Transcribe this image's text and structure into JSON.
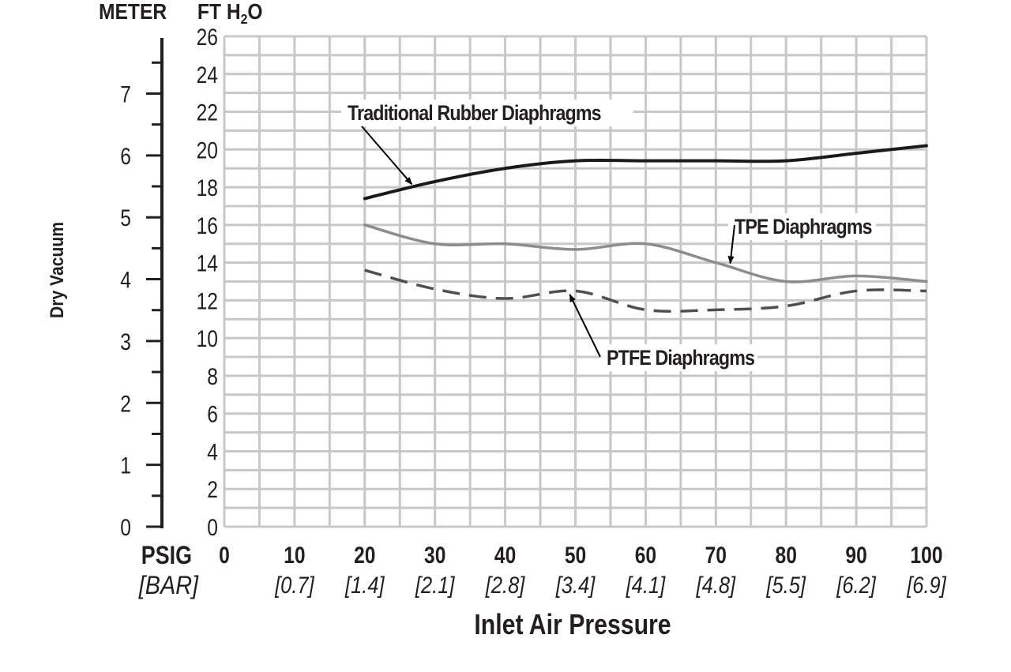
{
  "colors": {
    "background": "#ffffff",
    "grid": "#c8c8c8",
    "axis": "#231f20",
    "text": "#231f20",
    "rubber": "#1a1a1a",
    "tpe": "#8c8c8c",
    "ptfe": "#4f4f4f"
  },
  "chart_data": {
    "type": "line",
    "title": "",
    "xlabel": "Inlet Air Pressure",
    "ylabel": "Dry Vacuum",
    "x_unit_label": "PSIG",
    "x_unit_label_secondary": "[BAR]",
    "y_unit_label": "FT H2O",
    "y2_unit_label": "METER",
    "xlim": [
      0,
      100
    ],
    "ylim": [
      0,
      26
    ],
    "y2lim": [
      0,
      7.925
    ],
    "grid": true,
    "x_ticks": [
      0,
      10,
      20,
      30,
      40,
      50,
      60,
      70,
      80,
      90,
      100
    ],
    "x_tick_labels": [
      "0",
      "10",
      "20",
      "30",
      "40",
      "50",
      "60",
      "70",
      "80",
      "90",
      "100"
    ],
    "x_tick_labels_secondary": [
      "",
      "[0.7]",
      "[1.4]",
      "[2.1]",
      "[2.8]",
      "[3.4]",
      "[4.1]",
      "[4.8]",
      "[5.5]",
      "[6.2]",
      "[6.9]"
    ],
    "y_ticks": [
      0,
      2,
      4,
      6,
      8,
      10,
      12,
      14,
      16,
      18,
      20,
      22,
      24,
      26
    ],
    "y_tick_labels": [
      "0",
      "2",
      "4",
      "6",
      "8",
      "10",
      "12",
      "14",
      "16",
      "18",
      "20",
      "22",
      "24",
      "26"
    ],
    "y2_ticks": [
      0,
      1,
      2,
      3,
      4,
      5,
      6,
      7
    ],
    "y2_tick_labels": [
      "0",
      "1",
      "2",
      "3",
      "4",
      "5",
      "6",
      "7"
    ],
    "y2_minor_ticks": [
      0.5,
      1.5,
      2.5,
      3.5,
      4.5,
      5.5,
      6.5,
      7.5
    ],
    "series": [
      {
        "name": "Traditional Rubber Diaphragms",
        "style": "solid",
        "color": "#1a1a1a",
        "x": [
          20,
          30,
          40,
          50,
          60,
          70,
          80,
          90,
          100
        ],
        "y": [
          17.4,
          18.3,
          19.0,
          19.4,
          19.4,
          19.4,
          19.4,
          19.8,
          20.2
        ]
      },
      {
        "name": "TPE Diaphragms",
        "style": "solid",
        "color": "#8c8c8c",
        "x": [
          20,
          30,
          40,
          50,
          60,
          70,
          80,
          90,
          100
        ],
        "y": [
          16.0,
          15.0,
          15.0,
          14.7,
          15.0,
          14.0,
          13.0,
          13.3,
          13.0
        ]
      },
      {
        "name": "PTFE Diaphragms",
        "style": "dashed",
        "color": "#4f4f4f",
        "x": [
          20,
          30,
          40,
          50,
          60,
          70,
          80,
          90,
          100
        ],
        "y": [
          13.6,
          12.6,
          12.1,
          12.5,
          11.5,
          11.5,
          11.7,
          12.5,
          12.5
        ]
      }
    ],
    "annotations": [
      {
        "text": "Traditional Rubber Diaphragms",
        "series": 0,
        "arrow_to_x": 27
      },
      {
        "text": "TPE Diaphragms",
        "series": 1,
        "arrow_to_x": 72
      },
      {
        "text": "PTFE Diaphragms",
        "series": 2,
        "arrow_to_x": 49
      }
    ]
  }
}
